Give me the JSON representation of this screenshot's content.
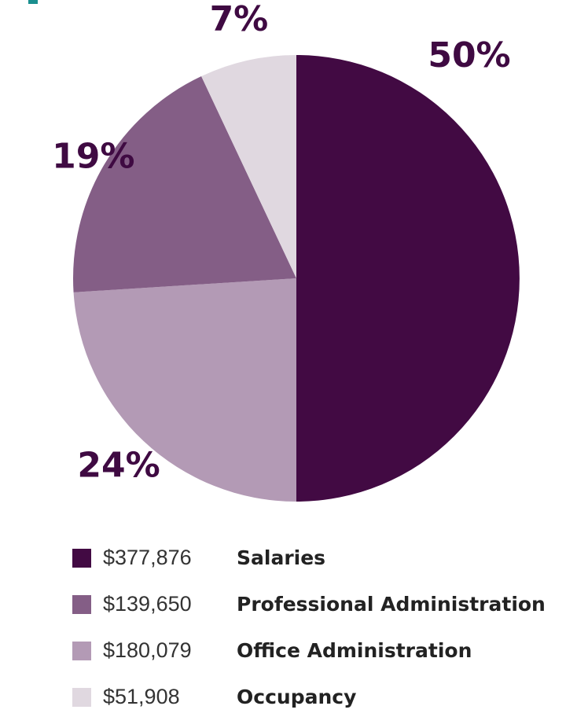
{
  "chart_data": {
    "type": "pie",
    "slices": [
      {
        "label": "Salaries",
        "amount": "$377,876",
        "percent": 50,
        "percent_label": "50%",
        "color": "#420a43"
      },
      {
        "label": "Professional Administration",
        "amount": "$139,650",
        "percent": 19,
        "percent_label": "19%",
        "color": "#845e86"
      },
      {
        "label": "Office Administration",
        "amount": "$180,079",
        "percent": 24,
        "percent_label": "24%",
        "color": "#b39ab5"
      },
      {
        "label": "Occupancy",
        "amount": "$51,908",
        "percent": 7,
        "percent_label": "7%",
        "color": "#e0d8e0"
      }
    ],
    "slice_order_clockwise_from_top": [
      "Salaries",
      "Office Administration",
      "Professional Administration",
      "Occupancy"
    ],
    "legend_position": "bottom"
  },
  "legend": [
    {
      "swatch_color": "#420a43",
      "amount": "$377,876",
      "label": "Salaries"
    },
    {
      "swatch_color": "#845e86",
      "amount": "$139,650",
      "label": "Professional Administration"
    },
    {
      "swatch_color": "#b39ab5",
      "amount": "$180,079",
      "label": "Office Administration"
    },
    {
      "swatch_color": "#e0d8e0",
      "amount": "$51,908",
      "label": "Occupancy"
    }
  ],
  "colors": {
    "accent_mark": "#1a8f8f",
    "label_text": "#3f0a42"
  }
}
